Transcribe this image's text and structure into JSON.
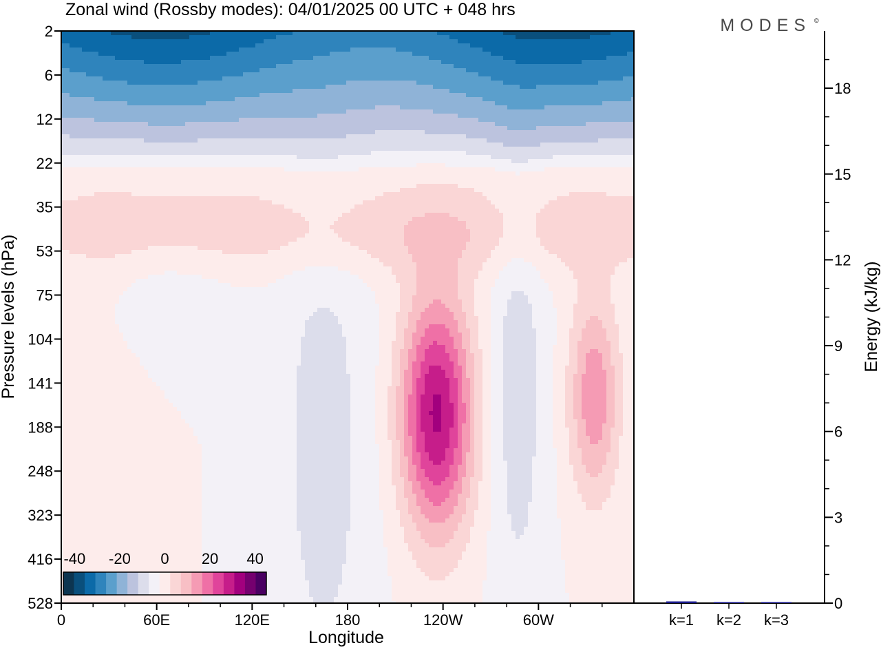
{
  "title": "Zonal wind (Rossby modes):  04/01/2025  00 UTC  + 048 hrs",
  "brand": "MODES",
  "brand_mark": "©",
  "chart_data": [
    {
      "type": "heatmap",
      "title": "Zonal wind (Rossby modes):  04/01/2025  00 UTC  + 048 hrs",
      "xlabel": "Longitude",
      "ylabel": "Pressure levels (hPa)",
      "x_ticks": [
        "0",
        "60E",
        "120E",
        "180",
        "120W",
        "60W"
      ],
      "x_tick_degrees": [
        0,
        60,
        120,
        180,
        240,
        300
      ],
      "xlim": [
        0,
        360
      ],
      "y_ticks": [
        "2",
        "6",
        "12",
        "22",
        "35",
        "53",
        "75",
        "104",
        "141",
        "188",
        "248",
        "323",
        "416",
        "528"
      ],
      "y_scale": "model levels, top to bottom",
      "colorbar": {
        "tick_labels": [
          "-40",
          "-20",
          "0",
          "20",
          "40"
        ],
        "range": [
          -45,
          45
        ],
        "step": 5,
        "colors": [
          "#0d3550",
          "#0a4f7c",
          "#0c6aa8",
          "#2f84bc",
          "#5b9fcc",
          "#8fb3d7",
          "#bcc3de",
          "#dcddeb",
          "#f3f1f7",
          "#fdeceb",
          "#fad6d6",
          "#f8bfc5",
          "#f59bb4",
          "#ef70a6",
          "#e0449b",
          "#c61d8a",
          "#a2007e",
          "#75006f",
          "#4a0062"
        ]
      },
      "features": [
        {
          "name": "stratospheric easterlies",
          "longitude": [
            0,
            360
          ],
          "pressure_hPa": [
            2,
            22
          ],
          "u_min": -35
        },
        {
          "name": "weak westerly band",
          "longitude": [
            70,
            360
          ],
          "pressure_hPa": [
            25,
            60
          ],
          "u_max": 10
        },
        {
          "name": "westerly jet maximum",
          "longitude": [
            230,
            245
          ],
          "pressure_hPa": [
            141,
            188
          ],
          "u_max": 35
        },
        {
          "name": "secondary westerly maximum",
          "longitude": [
            330,
            340
          ],
          "pressure_hPa": [
            125,
            160
          ],
          "u_max": 20
        },
        {
          "name": "easterly column",
          "longitude": [
            140,
            190
          ],
          "pressure_hPa": [
            75,
            528
          ],
          "u_min": -5
        },
        {
          "name": "easterly column",
          "longitude": [
            270,
            300
          ],
          "pressure_hPa": [
            75,
            416
          ],
          "u_min": -10
        }
      ]
    },
    {
      "type": "bar",
      "ylabel": "Energy (kJ/kg)",
      "categories": [
        "k=1",
        "k=2",
        "k=3"
      ],
      "values": [
        0.06,
        0.03,
        0.03
      ],
      "ylim": [
        0,
        20
      ],
      "y_ticks": [
        "0",
        "3",
        "6",
        "9",
        "12",
        "15",
        "18"
      ],
      "bar_color": "#1a1a8c"
    }
  ]
}
